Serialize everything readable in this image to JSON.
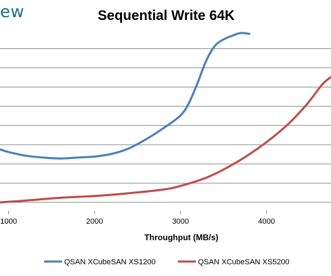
{
  "header": {
    "logo_fragment": "ew"
  },
  "chart_data": {
    "type": "line",
    "title": "Sequential Write 64K",
    "xlabel": "Throughput (MB/s)",
    "ylabel": "",
    "xlim": [
      900,
      4750
    ],
    "ylim": [
      0,
      10
    ],
    "x_ticks": [
      1000,
      2000,
      3000,
      4000
    ],
    "y_gridlines": [
      0.45,
      1.5,
      2.55,
      3.6,
      4.65,
      5.7,
      6.75,
      7.8,
      8.85
    ],
    "grid": true,
    "legend_position": "bottom",
    "series": [
      {
        "name": "QSAN XCubeSAN XS1200",
        "color": "#4a7ebb",
        "x": [
          900,
          1000,
          1200,
          1400,
          1600,
          1800,
          2000,
          2200,
          2400,
          2600,
          2800,
          3000,
          3100,
          3200,
          3300,
          3400,
          3500,
          3600,
          3700,
          3800
        ],
        "y": [
          3.35,
          3.2,
          3.0,
          2.9,
          2.85,
          2.9,
          2.95,
          3.1,
          3.4,
          3.9,
          4.5,
          5.2,
          5.9,
          7.0,
          8.2,
          9.0,
          9.35,
          9.55,
          9.7,
          9.65
        ]
      },
      {
        "name": "QSAN XCubeSAN XS5200",
        "color": "#be4b48",
        "x": [
          900,
          1200,
          1600,
          2000,
          2400,
          2800,
          3000,
          3300,
          3600,
          3900,
          4200,
          4450,
          4650,
          4750
        ],
        "y": [
          0.45,
          0.55,
          0.7,
          0.8,
          0.95,
          1.15,
          1.35,
          1.8,
          2.5,
          3.4,
          4.5,
          5.7,
          6.9,
          7.3
        ]
      }
    ]
  }
}
